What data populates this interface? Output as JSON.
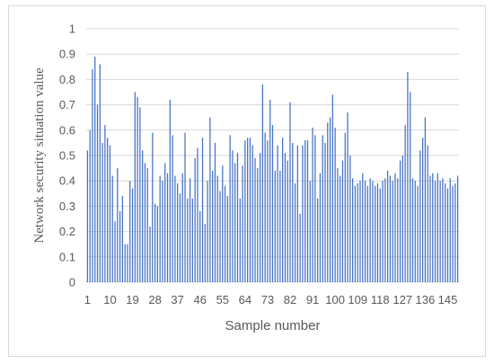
{
  "chart_data": {
    "type": "bar",
    "xlabel": "Sample number",
    "ylabel": "Network security situation value",
    "ylim": [
      0,
      1
    ],
    "yticks": [
      0,
      0.1,
      0.2,
      0.3,
      0.4,
      0.5,
      0.6,
      0.7,
      0.8,
      0.9,
      1
    ],
    "ytick_labels": [
      "0",
      "0.1",
      "0.2",
      "0.3",
      "0.4",
      "0.5",
      "0.6",
      "0.7",
      "0.8",
      "0.9",
      "1"
    ],
    "xtick_labels": [
      "1",
      "10",
      "19",
      "28",
      "37",
      "46",
      "55",
      "64",
      "73",
      "82",
      "91",
      "100",
      "109",
      "118",
      "127",
      "136",
      "145"
    ],
    "xtick_step": 9,
    "grid": true,
    "bar_color": "#4472c4",
    "grid_color": "#d9d9d9",
    "categories": [
      1,
      2,
      3,
      4,
      5,
      6,
      7,
      8,
      9,
      10,
      11,
      12,
      13,
      14,
      15,
      16,
      17,
      18,
      19,
      20,
      21,
      22,
      23,
      24,
      25,
      26,
      27,
      28,
      29,
      30,
      31,
      32,
      33,
      34,
      35,
      36,
      37,
      38,
      39,
      40,
      41,
      42,
      43,
      44,
      45,
      46,
      47,
      48,
      49,
      50,
      51,
      52,
      53,
      54,
      55,
      56,
      57,
      58,
      59,
      60,
      61,
      62,
      63,
      64,
      65,
      66,
      67,
      68,
      69,
      70,
      71,
      72,
      73,
      74,
      75,
      76,
      77,
      78,
      79,
      80,
      81,
      82,
      83,
      84,
      85,
      86,
      87,
      88,
      89,
      90,
      91,
      92,
      93,
      94,
      95,
      96,
      97,
      98,
      99,
      100,
      101,
      102,
      103,
      104,
      105,
      106,
      107,
      108,
      109,
      110,
      111,
      112,
      113,
      114,
      115,
      116,
      117,
      118,
      119,
      120,
      121,
      122,
      123,
      124,
      125,
      126,
      127,
      128,
      129,
      130,
      131,
      132,
      133,
      134,
      135,
      136,
      137,
      138,
      139,
      140,
      141,
      142,
      143,
      144,
      145,
      146,
      147,
      148,
      149
    ],
    "values": [
      0.52,
      0.6,
      0.84,
      0.89,
      0.7,
      0.86,
      0.55,
      0.62,
      0.57,
      0.54,
      0.42,
      0.24,
      0.45,
      0.28,
      0.34,
      0.15,
      0.15,
      0.4,
      0.37,
      0.75,
      0.73,
      0.69,
      0.52,
      0.47,
      0.45,
      0.22,
      0.59,
      0.31,
      0.3,
      0.42,
      0.4,
      0.47,
      0.43,
      0.72,
      0.58,
      0.42,
      0.39,
      0.35,
      0.43,
      0.59,
      0.33,
      0.41,
      0.33,
      0.49,
      0.53,
      0.28,
      0.57,
      0.23,
      0.4,
      0.65,
      0.44,
      0.55,
      0.42,
      0.36,
      0.46,
      0.38,
      0.34,
      0.58,
      0.52,
      0.47,
      0.51,
      0.33,
      0.46,
      0.56,
      0.57,
      0.57,
      0.54,
      0.49,
      0.45,
      0.51,
      0.78,
      0.59,
      0.56,
      0.72,
      0.62,
      0.44,
      0.54,
      0.44,
      0.57,
      0.51,
      0.48,
      0.71,
      0.55,
      0.39,
      0.54,
      0.27,
      0.54,
      0.56,
      0.56,
      0.4,
      0.61,
      0.58,
      0.33,
      0.43,
      0.58,
      0.55,
      0.63,
      0.65,
      0.74,
      0.61,
      0.45,
      0.42,
      0.48,
      0.59,
      0.67,
      0.5,
      0.41,
      0.38,
      0.39,
      0.4,
      0.43,
      0.4,
      0.38,
      0.41,
      0.4,
      0.38,
      0.39,
      0.37,
      0.4,
      0.41,
      0.44,
      0.42,
      0.4,
      0.43,
      0.41,
      0.48,
      0.5,
      0.62,
      0.83,
      0.75,
      0.41,
      0.4,
      0.38,
      0.52,
      0.57,
      0.65,
      0.54,
      0.42,
      0.43,
      0.4,
      0.43,
      0.4,
      0.41,
      0.39,
      0.37,
      0.41,
      0.38,
      0.39,
      0.42
    ]
  }
}
